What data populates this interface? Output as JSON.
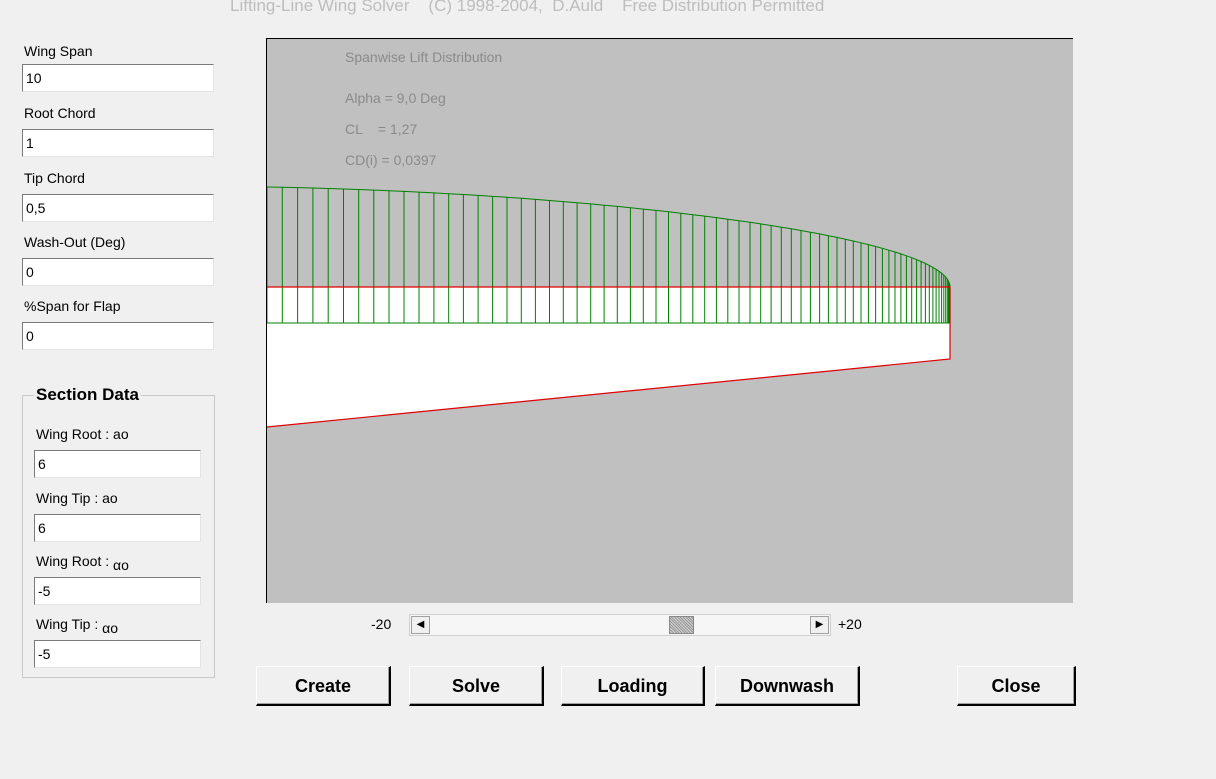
{
  "window": {
    "title": "Lifting-Line Wing Solver    (C) 1998-2004,  D.Auld    Free Distribution Permitted"
  },
  "params": [
    {
      "label": "Wing Span",
      "value": "10"
    },
    {
      "label": "Root Chord",
      "value": "1"
    },
    {
      "label": "Tip Chord",
      "value": "0,5"
    },
    {
      "label": "Wash-Out (Deg)",
      "value": "0"
    },
    {
      "label": "%Span for Flap",
      "value": "0"
    }
  ],
  "section": {
    "title": "Section Data",
    "fields": [
      {
        "label": "Wing Root : ao",
        "value": "6"
      },
      {
        "label": "Wing Tip :   ao",
        "value": "6"
      },
      {
        "label": "Wing Root : ",
        "symbol": "αo",
        "value": "-5"
      },
      {
        "label": "Wing Tip :   ",
        "symbol": "αo",
        "value": "-5"
      }
    ]
  },
  "plot": {
    "title": "Spanwise Lift Distribution",
    "alpha": "Alpha = 9,0 Deg",
    "cl": "CL    = 1,27",
    "cdi": "CD(i) = 0,0397",
    "colors": {
      "background": "#c0c0c0",
      "wing": "#ffffff",
      "outline": "#e00000",
      "lift": "#008000"
    }
  },
  "slider": {
    "min_label": "-20",
    "max_label": "+20",
    "value_fraction": 0.67
  },
  "buttons": {
    "create": "Create",
    "solve": "Solve",
    "loading": "Loading",
    "downwash": "Downwash",
    "close": "Close"
  }
}
